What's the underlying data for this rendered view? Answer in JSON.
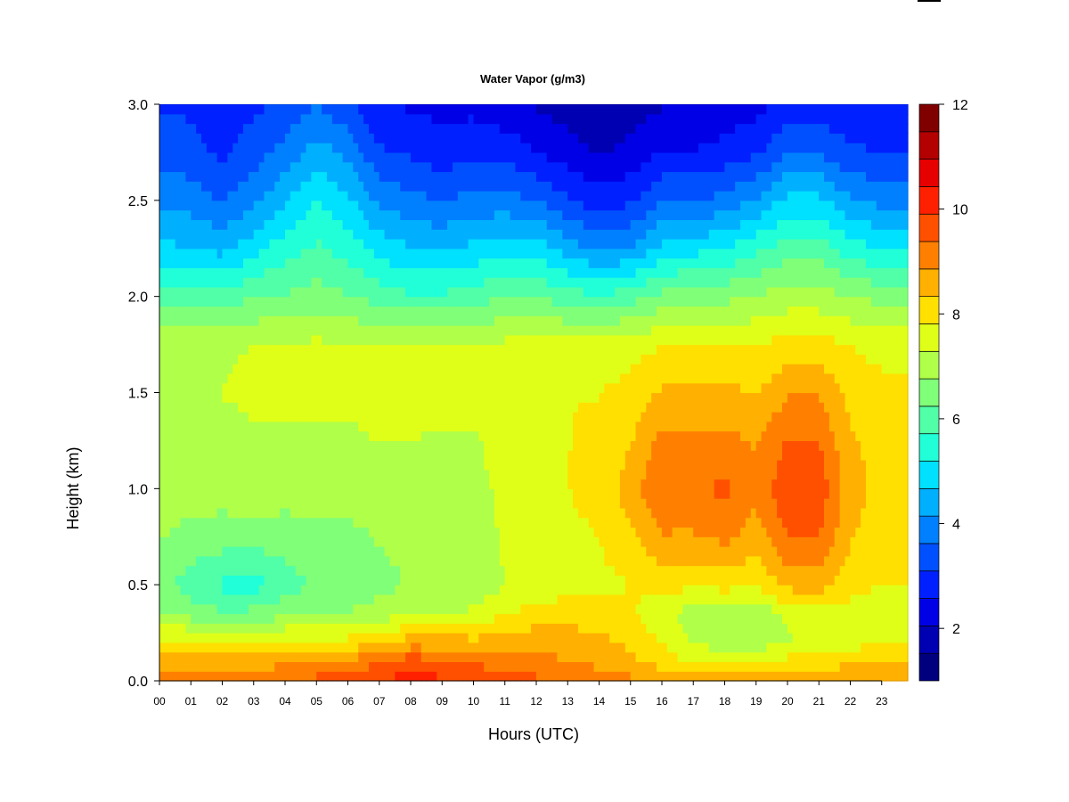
{
  "chart_data": {
    "type": "heatmap",
    "title": "Water Vapor (g/m3)",
    "xlabel": "Hours (UTC)",
    "ylabel": "Height (km)",
    "xlim": [
      0,
      23.83
    ],
    "ylim": [
      0.0,
      3.0
    ],
    "x_ticks": [
      "00",
      "01",
      "02",
      "03",
      "04",
      "05",
      "06",
      "07",
      "08",
      "09",
      "10",
      "11",
      "12",
      "13",
      "14",
      "15",
      "16",
      "17",
      "18",
      "19",
      "20",
      "21",
      "22",
      "23"
    ],
    "y_ticks": [
      "0.0",
      "0.5",
      "1.0",
      "1.5",
      "2.0",
      "2.5",
      "3.0"
    ],
    "colorbar": {
      "range": [
        1,
        12
      ],
      "ticks": [
        "2",
        "4",
        "6",
        "8",
        "10",
        "12"
      ],
      "levels": [
        "#00007f",
        "#0000b3",
        "#0000e6",
        "#0020ff",
        "#0050ff",
        "#0080ff",
        "#00b0ff",
        "#00e0ff",
        "#20ffd8",
        "#50ffa8",
        "#80ff78",
        "#b0ff48",
        "#e0ff18",
        "#ffe000",
        "#ffb000",
        "#ff8000",
        "#ff5000",
        "#ff2000",
        "#e60000",
        "#b30000",
        "#800000"
      ]
    },
    "profile_heights_km": [
      0.0,
      0.1,
      0.2,
      0.35,
      0.5,
      0.75,
      1.0,
      1.25,
      1.5,
      1.75,
      2.0,
      2.25,
      2.5,
      2.75,
      3.0
    ],
    "profiles": [
      {
        "hour": 0,
        "values": [
          9.0,
          8.5,
          8.0,
          6.8,
          6.4,
          6.8,
          7.0,
          7.1,
          7.2,
          7.2,
          6.0,
          4.8,
          4.0,
          3.4,
          3.0
        ]
      },
      {
        "hour": 1,
        "values": [
          9.0,
          8.6,
          8.0,
          6.5,
          6.0,
          6.6,
          7.0,
          7.1,
          7.2,
          7.2,
          6.0,
          4.7,
          3.9,
          3.3,
          3.0
        ]
      },
      {
        "hour": 2,
        "values": [
          9.0,
          8.6,
          8.0,
          6.3,
          5.6,
          6.5,
          7.0,
          7.1,
          7.3,
          7.2,
          5.9,
          4.5,
          3.6,
          3.0,
          2.6
        ]
      },
      {
        "hour": 3,
        "values": [
          9.2,
          8.6,
          7.8,
          6.4,
          5.5,
          6.5,
          7.1,
          7.2,
          7.4,
          7.3,
          6.2,
          5.0,
          4.0,
          3.4,
          3.0
        ]
      },
      {
        "hour": 4,
        "values": [
          9.3,
          8.8,
          8.0,
          6.6,
          6.0,
          6.5,
          7.0,
          7.2,
          7.4,
          7.3,
          6.3,
          5.5,
          4.6,
          3.8,
          3.2
        ]
      },
      {
        "hour": 5,
        "values": [
          9.5,
          9.0,
          8.0,
          6.8,
          6.3,
          6.6,
          7.0,
          7.2,
          7.4,
          7.4,
          6.5,
          5.8,
          5.2,
          4.4,
          3.6
        ]
      },
      {
        "hour": 6,
        "values": [
          9.6,
          9.0,
          8.0,
          6.8,
          6.4,
          6.6,
          7.0,
          7.2,
          7.4,
          7.3,
          6.3,
          5.5,
          4.8,
          4.0,
          3.2
        ]
      },
      {
        "hour": 7,
        "values": [
          9.9,
          9.4,
          8.2,
          7.0,
          6.6,
          6.8,
          7.1,
          7.3,
          7.5,
          7.4,
          6.0,
          5.0,
          4.0,
          3.2,
          2.6
        ]
      },
      {
        "hour": 8,
        "values": [
          10.2,
          9.7,
          8.6,
          7.2,
          6.8,
          6.9,
          7.1,
          7.3,
          7.5,
          7.4,
          5.8,
          4.7,
          3.8,
          3.0,
          2.5
        ]
      },
      {
        "hour": 9,
        "values": [
          10.0,
          9.5,
          8.6,
          7.3,
          6.8,
          6.9,
          7.0,
          7.2,
          7.5,
          7.3,
          5.8,
          4.6,
          3.6,
          2.8,
          2.4
        ]
      },
      {
        "hour": 10,
        "values": [
          9.8,
          9.3,
          8.5,
          7.4,
          6.8,
          6.8,
          7.0,
          7.2,
          7.5,
          7.4,
          6.0,
          4.8,
          3.8,
          3.0,
          2.4
        ]
      },
      {
        "hour": 11,
        "values": [
          9.7,
          9.1,
          8.6,
          7.8,
          7.3,
          7.4,
          7.5,
          7.6,
          7.6,
          7.4,
          6.2,
          5.0,
          3.8,
          2.9,
          2.2
        ]
      },
      {
        "hour": 12,
        "values": [
          9.5,
          9.0,
          8.7,
          8.0,
          7.5,
          7.6,
          7.6,
          7.7,
          7.7,
          7.5,
          6.2,
          5.0,
          3.6,
          2.6,
          2.0
        ]
      },
      {
        "hour": 13,
        "values": [
          9.4,
          8.9,
          8.6,
          8.1,
          7.6,
          7.7,
          7.8,
          7.8,
          7.8,
          7.5,
          6.0,
          4.4,
          3.2,
          2.3,
          1.8
        ]
      },
      {
        "hour": 14,
        "values": [
          9.2,
          8.7,
          8.5,
          8.1,
          7.7,
          7.8,
          8.0,
          7.9,
          7.8,
          7.5,
          5.8,
          4.0,
          2.8,
          2.0,
          1.6
        ]
      },
      {
        "hour": 15,
        "values": [
          9.0,
          8.5,
          8.2,
          7.9,
          7.8,
          8.2,
          8.6,
          8.3,
          8.0,
          7.6,
          6.0,
          4.2,
          3.0,
          2.2,
          1.8
        ]
      },
      {
        "hour": 16,
        "values": [
          8.8,
          8.1,
          7.8,
          7.4,
          8.0,
          8.8,
          9.4,
          9.0,
          8.4,
          7.8,
          6.4,
          4.8,
          3.6,
          2.6,
          2.0
        ]
      },
      {
        "hour": 17,
        "values": [
          8.6,
          7.8,
          7.2,
          7.0,
          7.9,
          8.8,
          9.3,
          9.0,
          8.4,
          7.8,
          6.6,
          5.0,
          3.6,
          2.6,
          2.0
        ]
      },
      {
        "hour": 18,
        "values": [
          8.6,
          7.8,
          7.0,
          6.9,
          8.0,
          9.0,
          9.5,
          9.0,
          8.5,
          7.8,
          6.6,
          5.2,
          3.8,
          2.8,
          2.2
        ]
      },
      {
        "hour": 19,
        "values": [
          8.6,
          7.9,
          7.0,
          6.9,
          7.9,
          8.6,
          9.0,
          8.8,
          8.3,
          7.8,
          6.8,
          5.6,
          4.2,
          3.0,
          2.4
        ]
      },
      {
        "hour": 20,
        "values": [
          8.7,
          8.0,
          7.2,
          7.4,
          8.5,
          9.4,
          9.8,
          9.4,
          8.8,
          8.0,
          7.0,
          6.0,
          4.8,
          3.6,
          2.8
        ]
      },
      {
        "hour": 21,
        "values": [
          8.8,
          8.1,
          7.5,
          7.6,
          8.6,
          9.4,
          9.7,
          9.4,
          8.8,
          8.0,
          7.0,
          6.0,
          4.8,
          3.6,
          2.8
        ]
      },
      {
        "hour": 22,
        "values": [
          8.9,
          8.2,
          7.6,
          7.6,
          8.0,
          8.4,
          8.6,
          8.4,
          8.2,
          7.8,
          6.8,
          5.4,
          4.2,
          3.2,
          2.6
        ]
      },
      {
        "hour": 23,
        "values": [
          9.0,
          8.3,
          7.8,
          7.6,
          7.8,
          8.0,
          8.1,
          8.1,
          8.0,
          7.6,
          6.6,
          5.2,
          4.0,
          3.1,
          2.6
        ]
      }
    ]
  }
}
